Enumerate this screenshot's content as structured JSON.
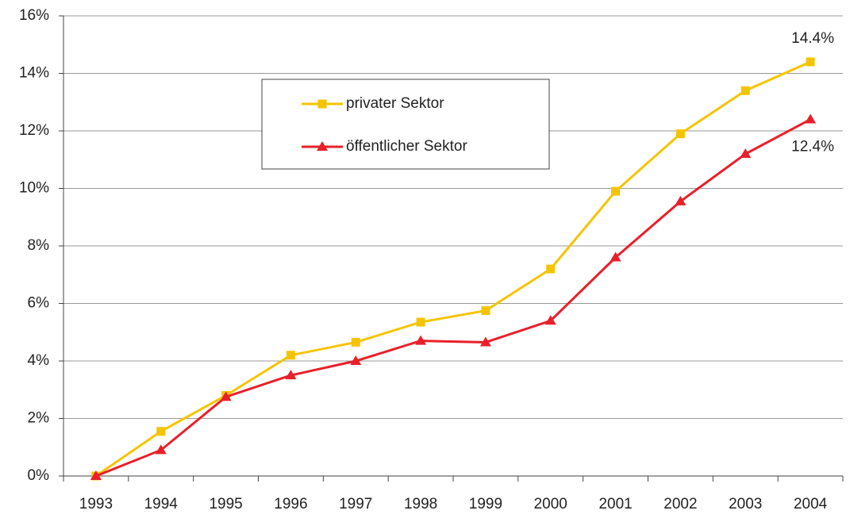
{
  "chart_data": {
    "type": "line",
    "categories": [
      "1993",
      "1994",
      "1995",
      "1996",
      "1997",
      "1998",
      "1999",
      "2000",
      "2001",
      "2002",
      "2003",
      "2004"
    ],
    "series": [
      {
        "name": "privater Sektor",
        "color": "#f5c400",
        "marker": "square",
        "values": [
          0,
          1.55,
          2.8,
          4.2,
          4.65,
          5.35,
          5.75,
          7.2,
          9.9,
          11.9,
          13.4,
          14.4
        ],
        "value_labels": [
          null,
          null,
          null,
          null,
          null,
          null,
          null,
          null,
          null,
          null,
          null,
          "14.4%"
        ]
      },
      {
        "name": "öffentlicher Sektor",
        "color": "#e8202a",
        "marker": "triangle",
        "values": [
          0,
          0.9,
          2.75,
          3.5,
          4.0,
          4.7,
          4.65,
          5.4,
          7.6,
          9.55,
          11.2,
          12.4
        ],
        "value_labels": [
          null,
          null,
          null,
          null,
          null,
          null,
          null,
          null,
          null,
          null,
          null,
          "12.4%"
        ]
      }
    ],
    "ylim": [
      0,
      16
    ],
    "yticks": [
      {
        "value": 0,
        "label": "0%"
      },
      {
        "value": 2,
        "label": "2%"
      },
      {
        "value": 4,
        "label": "4%"
      },
      {
        "value": 6,
        "label": "6%"
      },
      {
        "value": 8,
        "label": "8%"
      },
      {
        "value": 10,
        "label": "10%"
      },
      {
        "value": 12,
        "label": "12%"
      },
      {
        "value": 14,
        "label": "14%"
      },
      {
        "value": 16,
        "label": "16%"
      }
    ],
    "grid": true
  }
}
